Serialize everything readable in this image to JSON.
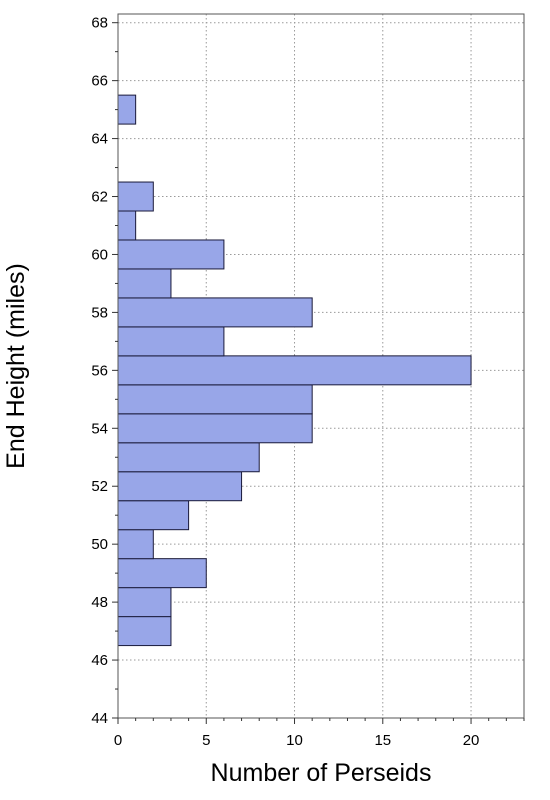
{
  "chart_data": {
    "type": "bar",
    "orientation": "horizontal",
    "xlabel": "Number of Perseids",
    "ylabel": "End Height (miles)",
    "xlim": [
      0,
      23
    ],
    "ylim": [
      44,
      68.3
    ],
    "x_ticks": [
      0,
      5,
      10,
      15,
      20
    ],
    "y_ticks": [
      44,
      46,
      48,
      50,
      52,
      54,
      56,
      58,
      60,
      62,
      64,
      66,
      68
    ],
    "grid": true,
    "bar_color": "#98a6e8",
    "bar_edge_color": "#1a1a3a",
    "bins": [
      {
        "y0": 46.5,
        "y1": 47.5,
        "count": 3
      },
      {
        "y0": 47.5,
        "y1": 48.5,
        "count": 3
      },
      {
        "y0": 48.5,
        "y1": 49.5,
        "count": 5
      },
      {
        "y0": 49.5,
        "y1": 50.5,
        "count": 2
      },
      {
        "y0": 50.5,
        "y1": 51.5,
        "count": 4
      },
      {
        "y0": 51.5,
        "y1": 52.5,
        "count": 7
      },
      {
        "y0": 52.5,
        "y1": 53.5,
        "count": 8
      },
      {
        "y0": 53.5,
        "y1": 54.5,
        "count": 11
      },
      {
        "y0": 54.5,
        "y1": 55.5,
        "count": 11
      },
      {
        "y0": 55.5,
        "y1": 56.5,
        "count": 20
      },
      {
        "y0": 56.5,
        "y1": 57.5,
        "count": 6
      },
      {
        "y0": 57.5,
        "y1": 58.5,
        "count": 11
      },
      {
        "y0": 58.5,
        "y1": 59.5,
        "count": 3
      },
      {
        "y0": 59.5,
        "y1": 60.5,
        "count": 6
      },
      {
        "y0": 60.5,
        "y1": 61.5,
        "count": 1
      },
      {
        "y0": 61.5,
        "y1": 62.5,
        "count": 2
      },
      {
        "y0": 62.5,
        "y1": 63.5,
        "count": 0
      },
      {
        "y0": 63.5,
        "y1": 64.5,
        "count": 0
      },
      {
        "y0": 64.5,
        "y1": 65.5,
        "count": 1
      }
    ]
  }
}
